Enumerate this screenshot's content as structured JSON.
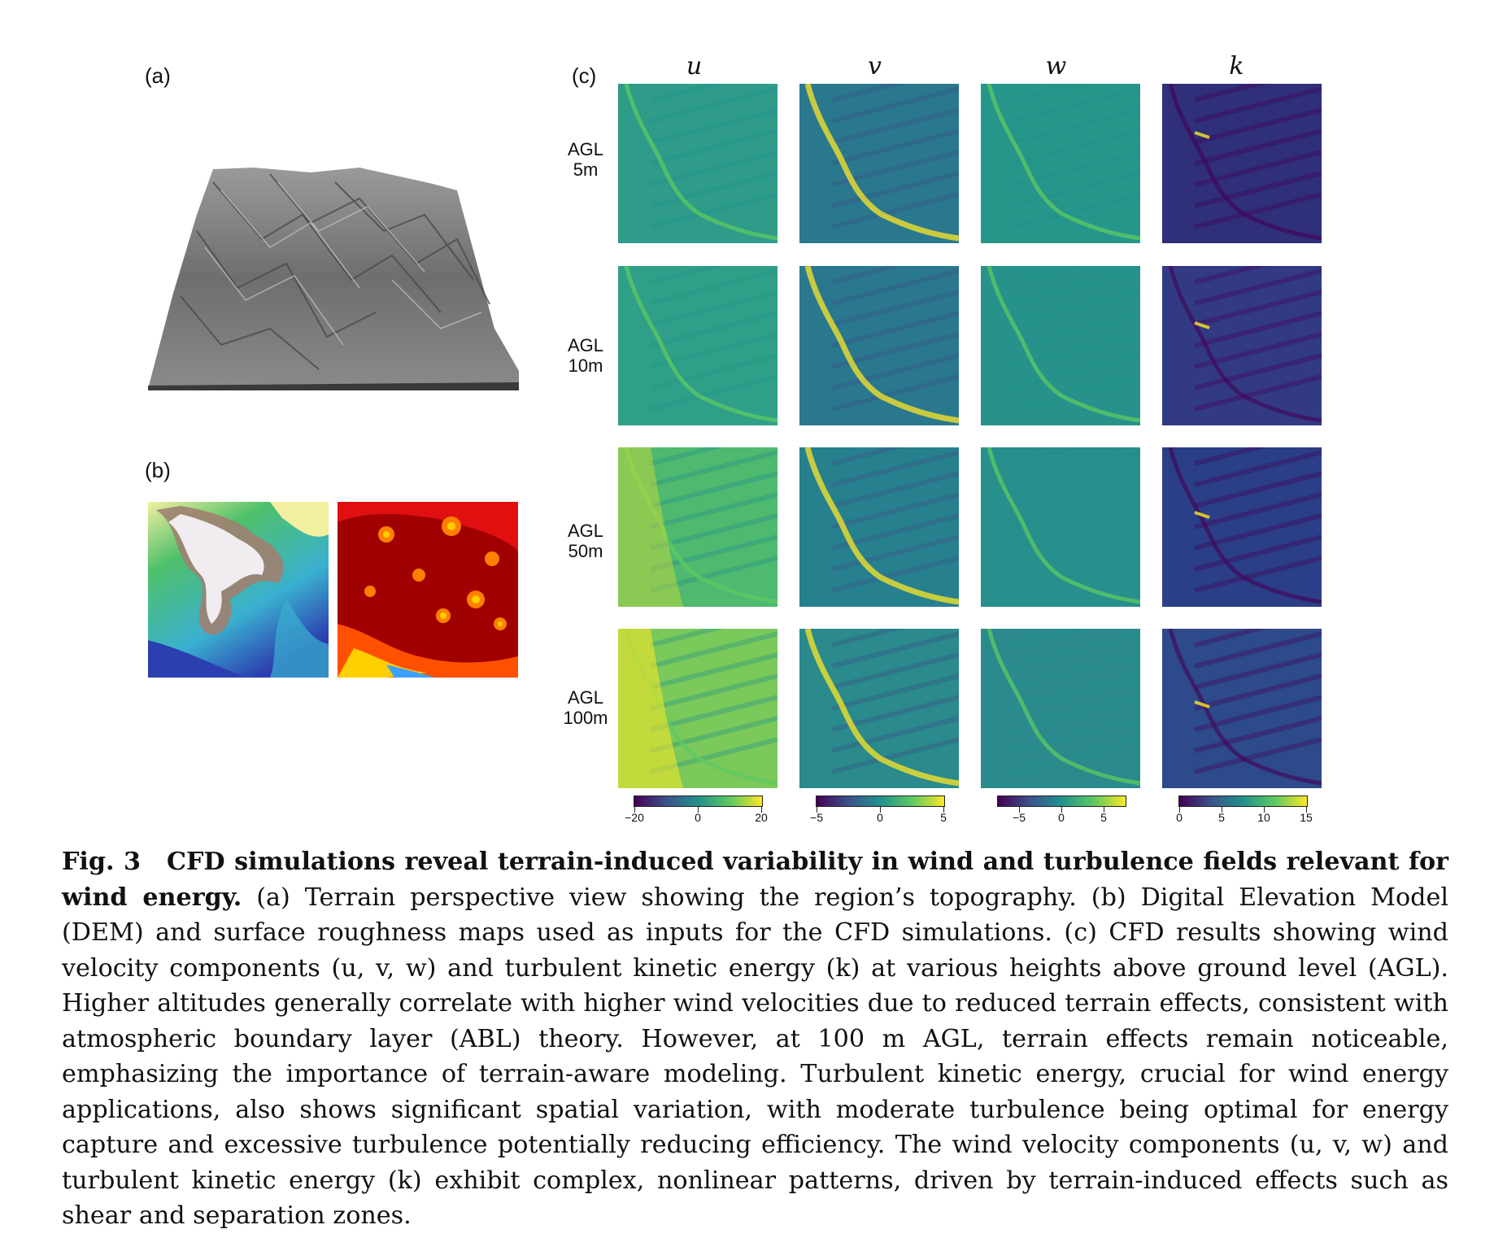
{
  "figure": {
    "panel_labels": {
      "a": "(a)",
      "b": "(b)",
      "c": "(c)"
    },
    "columns": [
      "u",
      "v",
      "w",
      "k"
    ],
    "rows": [
      {
        "line1": "AGL",
        "line2": "5m"
      },
      {
        "line1": "AGL",
        "line2": "10m"
      },
      {
        "line1": "AGL",
        "line2": "50m"
      },
      {
        "line1": "AGL",
        "line2": "100m"
      }
    ],
    "colorbars": [
      {
        "ticks": [
          "−20",
          "0",
          "20"
        ]
      },
      {
        "ticks": [
          "−5",
          "0",
          "5"
        ]
      },
      {
        "ticks": [
          "−5",
          "0",
          "5"
        ]
      },
      {
        "ticks": [
          "0",
          "5",
          "10",
          "15"
        ]
      }
    ],
    "colors": {
      "viridis": [
        "#440154",
        "#3b528b",
        "#21918c",
        "#5ec962",
        "#fde725"
      ],
      "dem": [
        "#2b3fb0",
        "#3ab0d0",
        "#4fc06a",
        "#f2f0a0",
        "#a08070",
        "#ffffff"
      ],
      "roughness": [
        "#8b0000",
        "#d00000",
        "#ff3000",
        "#ffd000",
        "#40a0ff"
      ]
    }
  },
  "caption": {
    "label": "Fig. 3",
    "title": "CFD simulations reveal terrain-induced variability in wind and turbulence fields relevant for wind energy.",
    "body": " (a) Terrain perspective view showing the region’s topography. (b) Digital Elevation Model (DEM) and surface roughness maps used as inputs for the CFD simulations. (c) CFD results showing wind velocity components (u, v, w) and turbulent kinetic energy (k) at various heights above ground level (AGL). Higher altitudes generally correlate with higher wind velocities due to reduced terrain effects, consistent with atmospheric boundary layer (ABL) theory. However, at 100 m AGL, terrain effects remain noticeable, emphasizing the importance of terrain-aware modeling. Turbulent kinetic energy, crucial for wind energy applications, also shows significant spatial variation, with moderate turbulence being optimal for energy capture and excessive turbulence potentially reducing efficiency. The wind velocity components (u, v, w) and turbulent kinetic energy (k) exhibit complex, nonlinear patterns, driven by terrain-induced effects such as shear and separation zones."
  }
}
